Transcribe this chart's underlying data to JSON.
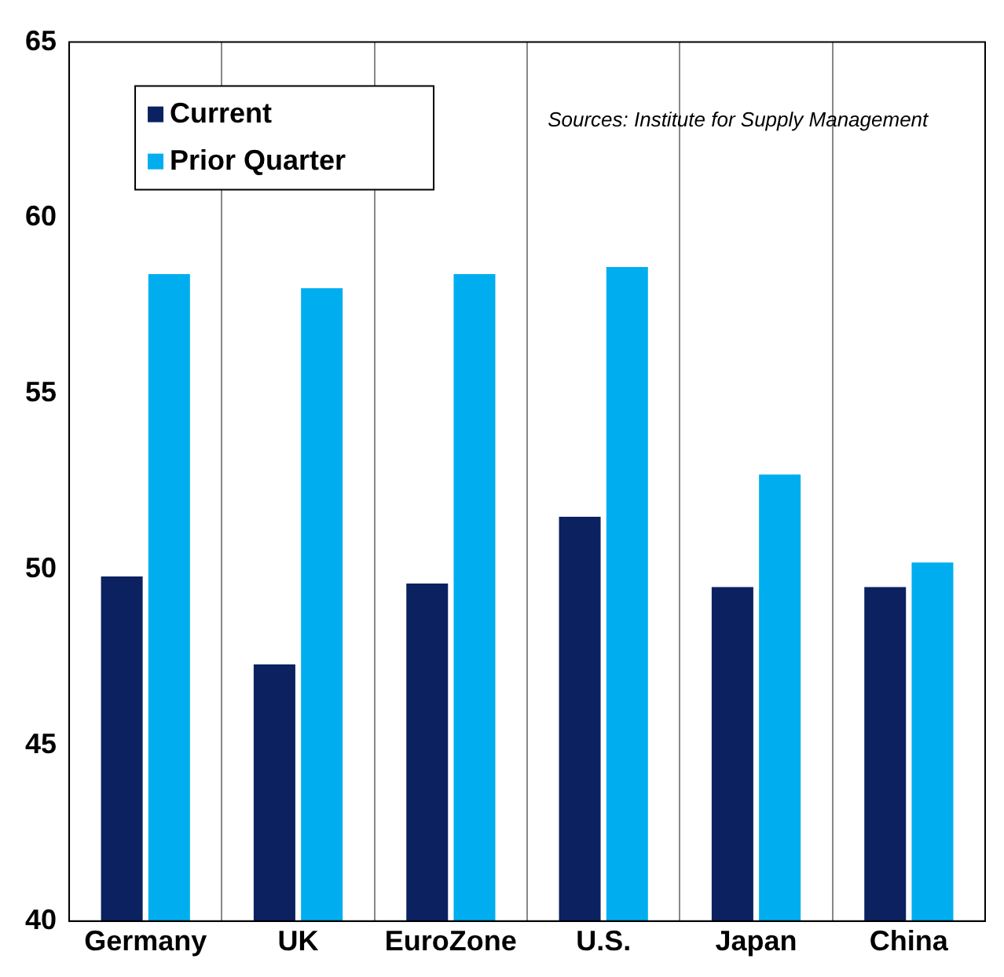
{
  "chart_data": {
    "type": "bar",
    "categories": [
      "Germany",
      "UK",
      "EuroZone",
      "U.S.",
      "Japan",
      "China"
    ],
    "series": [
      {
        "name": "Current",
        "color": "#0b2160",
        "values": [
          49.8,
          47.3,
          49.6,
          51.5,
          49.5,
          49.5
        ]
      },
      {
        "name": "Prior Quarter",
        "color": "#00aeef",
        "values": [
          58.4,
          58.0,
          58.4,
          58.6,
          52.7,
          50.2
        ]
      }
    ],
    "ylim": [
      40,
      65
    ],
    "yticks": [
      40,
      45,
      50,
      55,
      60,
      65
    ],
    "grid": "x",
    "legend": "top left",
    "annotations": [
      "Sources: Institute for Supply Management"
    ]
  }
}
